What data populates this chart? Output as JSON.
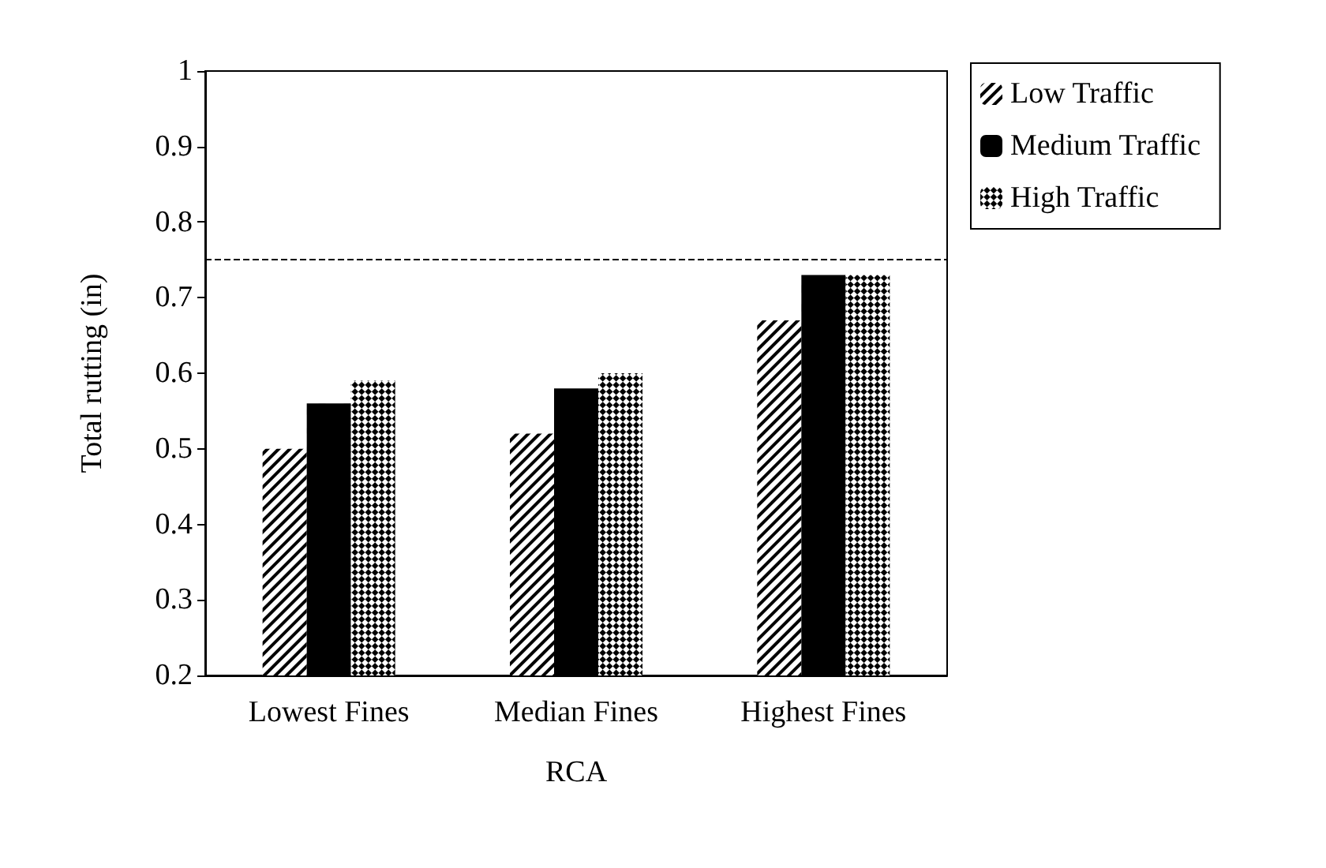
{
  "chart_data": {
    "type": "bar",
    "xlabel": "RCA",
    "ylabel": "Total rutting (in)",
    "categories": [
      "Lowest Fines",
      "Median Fines",
      "Highest Fines"
    ],
    "series": [
      {
        "name": "Low Traffic",
        "color": "#000000",
        "values": [
          0.5,
          0.52,
          0.67
        ]
      },
      {
        "name": "Medium Traffic",
        "color": "#000000",
        "values": [
          0.56,
          0.58,
          0.73
        ]
      },
      {
        "name": "High Traffic",
        "color": "#000000",
        "values": [
          0.59,
          0.6,
          0.73
        ]
      }
    ],
    "ylim": [
      0.2,
      1
    ],
    "yticks": [
      0.2,
      0.3,
      0.4,
      0.5,
      0.6,
      0.7,
      0.8,
      0.9,
      1
    ],
    "ref_lines": [
      {
        "axis": "y",
        "value": 0.75,
        "line_style": "dashed",
        "color": "#000000"
      }
    ],
    "grid": false,
    "legend": "right"
  }
}
